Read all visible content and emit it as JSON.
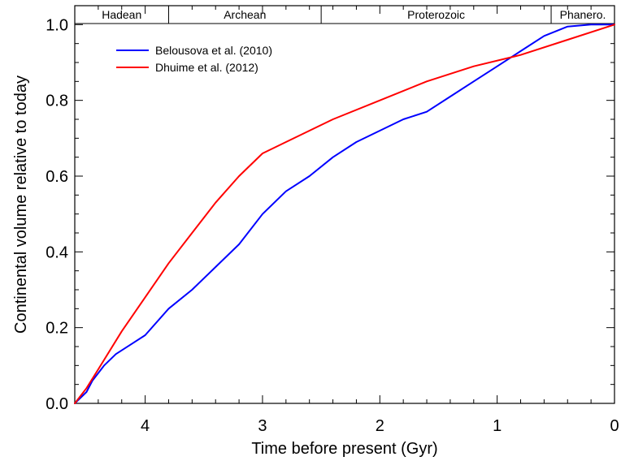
{
  "chart_data": {
    "type": "line",
    "xlabel": "Time before present  (Gyr)",
    "ylabel": "Continental volume relative to today",
    "xlim": [
      4.6,
      0
    ],
    "ylim": [
      0,
      1.05
    ],
    "x_ticks": [
      "4",
      "3",
      "2",
      "1",
      "0"
    ],
    "y_ticks": [
      "0.0",
      "0.2",
      "0.4",
      "0.6",
      "0.8",
      "1.0"
    ],
    "eras": [
      {
        "label": "Hadean",
        "from": 4.6,
        "to": 3.8
      },
      {
        "label": "Archean",
        "from": 3.8,
        "to": 2.5
      },
      {
        "label": "Proterozoic",
        "from": 2.5,
        "to": 0.54
      },
      {
        "label": "Phanero.",
        "from": 0.54,
        "to": 0
      }
    ],
    "legend_position": "top-left",
    "grid": false,
    "series": [
      {
        "name": "Belousova et al. (2010)",
        "color": "#0000ff",
        "points": [
          [
            4.6,
            0.0
          ],
          [
            4.5,
            0.03
          ],
          [
            4.45,
            0.06
          ],
          [
            4.35,
            0.1
          ],
          [
            4.25,
            0.13
          ],
          [
            4.1,
            0.16
          ],
          [
            4.0,
            0.18
          ],
          [
            3.8,
            0.25
          ],
          [
            3.6,
            0.3
          ],
          [
            3.4,
            0.36
          ],
          [
            3.2,
            0.42
          ],
          [
            3.0,
            0.5
          ],
          [
            2.8,
            0.56
          ],
          [
            2.6,
            0.6
          ],
          [
            2.4,
            0.65
          ],
          [
            2.2,
            0.69
          ],
          [
            2.0,
            0.72
          ],
          [
            1.8,
            0.75
          ],
          [
            1.6,
            0.77
          ],
          [
            1.4,
            0.81
          ],
          [
            1.2,
            0.85
          ],
          [
            1.0,
            0.89
          ],
          [
            0.8,
            0.93
          ],
          [
            0.6,
            0.97
          ],
          [
            0.4,
            0.995
          ],
          [
            0.2,
            1.0
          ],
          [
            0.0,
            1.0
          ]
        ]
      },
      {
        "name": "Dhuime et al. (2012)",
        "color": "#ff0000",
        "points": [
          [
            4.6,
            0.0
          ],
          [
            4.5,
            0.04
          ],
          [
            4.4,
            0.09
          ],
          [
            4.2,
            0.19
          ],
          [
            4.0,
            0.28
          ],
          [
            3.8,
            0.37
          ],
          [
            3.6,
            0.45
          ],
          [
            3.4,
            0.53
          ],
          [
            3.2,
            0.6
          ],
          [
            3.0,
            0.66
          ],
          [
            2.8,
            0.69
          ],
          [
            2.6,
            0.72
          ],
          [
            2.4,
            0.75
          ],
          [
            2.0,
            0.8
          ],
          [
            1.6,
            0.85
          ],
          [
            1.2,
            0.89
          ],
          [
            0.8,
            0.92
          ],
          [
            0.4,
            0.96
          ],
          [
            0.0,
            1.0
          ]
        ]
      }
    ]
  }
}
